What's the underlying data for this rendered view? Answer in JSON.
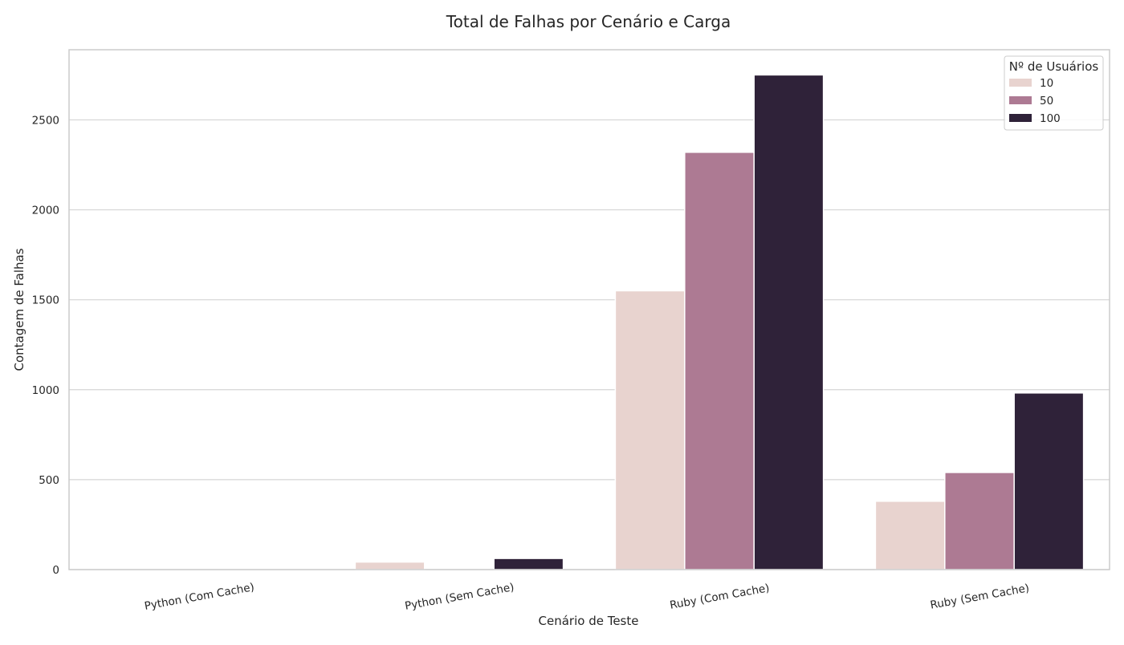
{
  "chart_data": {
    "type": "bar",
    "title": "Total de Falhas por Cenário e Carga",
    "xlabel": "Cenário de Teste",
    "ylabel": "Contagem de Falhas",
    "categories": [
      "Python (Com Cache)",
      "Python (Sem Cache)",
      "Ruby (Com Cache)",
      "Ruby (Sem Cache)"
    ],
    "series": [
      {
        "name": "10",
        "color": "#e8d3cf",
        "values": [
          0,
          42,
          1550,
          380
        ]
      },
      {
        "name": "50",
        "color": "#ad7a93",
        "values": [
          0,
          0,
          2320,
          540
        ]
      },
      {
        "name": "100",
        "color": "#2f2239",
        "values": [
          0,
          62,
          2750,
          982
        ]
      }
    ],
    "ylim": [
      0,
      2890
    ],
    "yticks": [
      0,
      500,
      1000,
      1500,
      2000,
      2500
    ],
    "grid": true,
    "legend": {
      "title": "Nº de Usuários",
      "position": "top-right"
    }
  }
}
